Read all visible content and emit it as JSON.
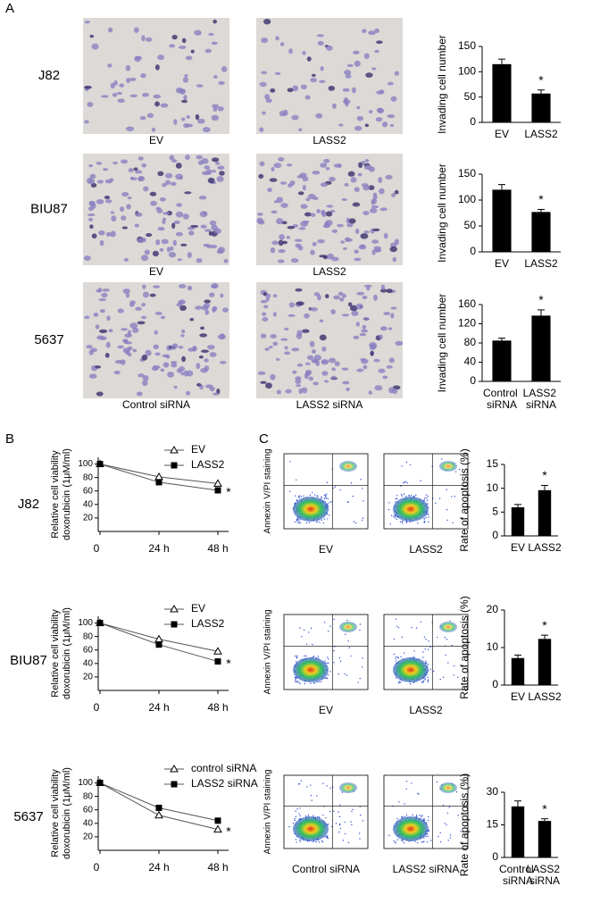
{
  "panel_labels": [
    "A",
    "B",
    "C"
  ],
  "cell_lines": [
    "J82",
    "BIU87",
    "5637"
  ],
  "panel_a": {
    "captions": [
      [
        "EV",
        "LASS2"
      ],
      [
        "EV",
        "LASS2"
      ],
      [
        "Control siRNA",
        "LASS2 siRNA"
      ]
    ]
  },
  "panel_c": {
    "ylabel": "Annexin V/PI staining",
    "captions": [
      [
        "EV",
        "LASS2"
      ],
      [
        "EV",
        "LASS2"
      ],
      [
        "Control siRNA",
        "LASS2 siRNA"
      ]
    ]
  },
  "chart_data": [
    {
      "type": "bar",
      "ylabel": "Invading cell number",
      "categories": [
        "EV",
        "LASS2"
      ],
      "values": [
        115,
        57
      ],
      "errors": [
        10,
        7
      ],
      "color": "#000000",
      "ylim": [
        0,
        150
      ],
      "yticks": [
        0,
        50,
        100,
        150
      ],
      "annotation": "*"
    },
    {
      "type": "bar",
      "ylabel": "Invading cell number",
      "categories": [
        "EV",
        "LASS2"
      ],
      "values": [
        120,
        77
      ],
      "errors": [
        10,
        5
      ],
      "color": "#000000",
      "ylim": [
        0,
        150
      ],
      "yticks": [
        0,
        50,
        100,
        150
      ],
      "annotation": "*"
    },
    {
      "type": "bar",
      "ylabel": "Invading cell number",
      "categories": [
        "Control siRNA",
        "LASS2 siRNA"
      ],
      "values": [
        85,
        137
      ],
      "errors": [
        5,
        12
      ],
      "color": "#000000",
      "ylim": [
        0,
        160
      ],
      "yticks": [
        0,
        40,
        80,
        120,
        160
      ],
      "annotation": "*"
    },
    {
      "type": "line",
      "ylabel": [
        "Relative cell viability",
        "doxorubicin (1μM/ml)"
      ],
      "categories": [
        "0",
        "24 h",
        "48 h"
      ],
      "series": [
        {
          "name": "EV",
          "color": "#555555",
          "marker": "open-triangle",
          "values": [
            100,
            81,
            71
          ]
        },
        {
          "name": "LASS2",
          "color": "#555555",
          "marker": "filled-square",
          "values": [
            100,
            73,
            61
          ]
        }
      ],
      "ylim": [
        0,
        110
      ],
      "yticks": [
        20,
        40,
        60,
        80,
        100
      ],
      "annotation": "*"
    },
    {
      "type": "line",
      "ylabel": [
        "Relative cell viability",
        "doxorubicin (1μM/ml)"
      ],
      "categories": [
        "0",
        "24 h",
        "48 h"
      ],
      "series": [
        {
          "name": "EV",
          "color": "#555555",
          "marker": "open-triangle",
          "values": [
            100,
            76,
            58
          ]
        },
        {
          "name": "LASS2",
          "color": "#555555",
          "marker": "filled-square",
          "values": [
            100,
            68,
            43
          ]
        }
      ],
      "ylim": [
        0,
        110
      ],
      "yticks": [
        20,
        40,
        60,
        80,
        100
      ],
      "annotation": "*"
    },
    {
      "type": "line",
      "ylabel": [
        "Relative cell viability",
        "doxorubicin (1μM/ml)"
      ],
      "categories": [
        "0",
        "24 h",
        "48 h"
      ],
      "series": [
        {
          "name": "control siRNA",
          "color": "#555555",
          "marker": "open-triangle",
          "values": [
            100,
            52,
            31
          ]
        },
        {
          "name": "LASS2 siRNA",
          "color": "#555555",
          "marker": "filled-square",
          "values": [
            100,
            63,
            44
          ]
        }
      ],
      "ylim": [
        0,
        110
      ],
      "yticks": [
        20,
        40,
        60,
        80,
        100
      ],
      "annotation": "*"
    },
    {
      "type": "bar",
      "ylabel": "Rate of apoptosis (%)",
      "categories": [
        "EV",
        "LASS2"
      ],
      "values": [
        6,
        9.6
      ],
      "errors": [
        0.6,
        1
      ],
      "color": "#000000",
      "ylim": [
        0,
        15
      ],
      "yticks": [
        0,
        5,
        10,
        15
      ],
      "annotation": "*"
    },
    {
      "type": "bar",
      "ylabel": "Rate of apoptosis (%)",
      "categories": [
        "EV",
        "LASS2"
      ],
      "values": [
        7.2,
        12.3
      ],
      "errors": [
        0.8,
        1
      ],
      "color": "#000000",
      "ylim": [
        0,
        20
      ],
      "yticks": [
        0,
        10,
        20
      ],
      "annotation": "*"
    },
    {
      "type": "bar",
      "ylabel": "Rate of apoptosis (%)",
      "categories": [
        "Control siRNA",
        "LASS2 siRNA"
      ],
      "values": [
        23.5,
        16.8
      ],
      "errors": [
        2.5,
        1
      ],
      "color": "#000000",
      "ylim": [
        0,
        30
      ],
      "yticks": [
        0,
        15,
        30
      ],
      "annotation": "*"
    }
  ]
}
